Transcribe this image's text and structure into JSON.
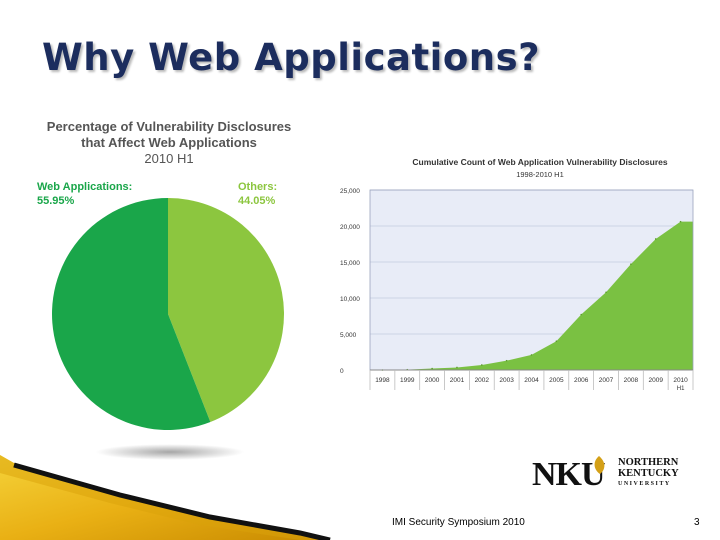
{
  "slide": {
    "title": "Why Web Applications?",
    "footer": "IMI Security Symposium 2010",
    "page_number": "3"
  },
  "logo": {
    "initials": "NKU",
    "line1": "NORTHERN",
    "line2": "KENTUCKY",
    "line3": "UNIVERSITY"
  },
  "colors": {
    "title": "#1c2d5e",
    "web": "#1aa64a",
    "others": "#8cc63f",
    "area_fill": "#7ac142",
    "plot_bg": "#e8ecf7"
  },
  "chart_data": [
    {
      "type": "pie",
      "title_line1": "Percentage of Vulnerability Disclosures",
      "title_line2": "that Affect Web Applications",
      "subtitle": "2010 H1",
      "slices": [
        {
          "label": "Web Applications:",
          "value_label": "55.95%",
          "value": 55.95,
          "color": "#1aa64a"
        },
        {
          "label": "Others:",
          "value_label": "44.05%",
          "value": 44.05,
          "color": "#8cc63f"
        }
      ]
    },
    {
      "type": "area",
      "title": "Cumulative Count of Web Application Vulnerability Disclosures",
      "subtitle": "1998-2010 H1",
      "ylim": [
        0,
        25000
      ],
      "yticks": [
        "0",
        "5,000",
        "10,000",
        "15,000",
        "20,000",
        "25,000"
      ],
      "ytick_values": [
        0,
        5000,
        10000,
        15000,
        20000,
        25000
      ],
      "categories": [
        "1998",
        "1999",
        "2000",
        "2001",
        "2002",
        "2003",
        "2004",
        "2005",
        "2006",
        "2007",
        "2008",
        "2009",
        "2010"
      ],
      "category_sublabels": {
        "2010": "H1"
      },
      "values": [
        0,
        50,
        200,
        350,
        700,
        1300,
        2100,
        4000,
        7700,
        10800,
        14700,
        18200,
        20600
      ],
      "grid": true
    }
  ]
}
